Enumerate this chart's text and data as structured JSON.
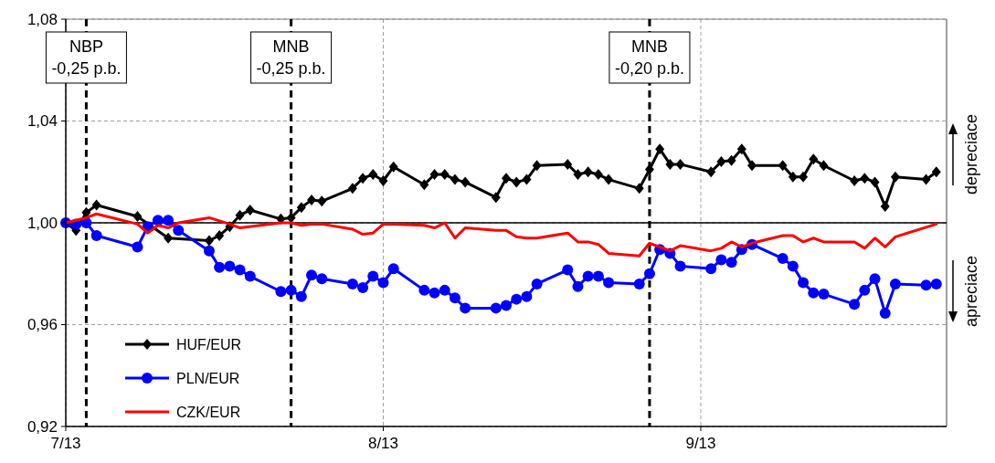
{
  "chart_data": {
    "type": "line",
    "xlim": [
      "2013-07-01",
      "2013-09-25"
    ],
    "xticks": [
      {
        "value": "2013-07-01",
        "label": "7/13"
      },
      {
        "value": "2013-08-01",
        "label": "8/13"
      },
      {
        "value": "2013-09-01",
        "label": "9/13"
      }
    ],
    "ylim": [
      0.92,
      1.08
    ],
    "yticks": [
      {
        "value": 0.92,
        "label": "0,92"
      },
      {
        "value": 0.96,
        "label": "0,96"
      },
      {
        "value": 1.0,
        "label": "1,00"
      },
      {
        "value": 1.04,
        "label": "1,04"
      },
      {
        "value": 1.08,
        "label": "1,08"
      }
    ],
    "grid": true,
    "legend": "bottom left",
    "line_style": "solid",
    "series": [
      {
        "name": "HUF/EUR",
        "color": "#000000",
        "marker": "diamond",
        "x": [
          "2013-07-01",
          "2013-07-02",
          "2013-07-03",
          "2013-07-04",
          "2013-07-08",
          "2013-07-11",
          "2013-07-15",
          "2013-07-16",
          "2013-07-17",
          "2013-07-18",
          "2013-07-19",
          "2013-07-22",
          "2013-07-23",
          "2013-07-24",
          "2013-07-25",
          "2013-07-26",
          "2013-07-29",
          "2013-07-30",
          "2013-07-31",
          "2013-08-01",
          "2013-08-02",
          "2013-08-05",
          "2013-08-06",
          "2013-08-07",
          "2013-08-08",
          "2013-08-09",
          "2013-08-12",
          "2013-08-13",
          "2013-08-14",
          "2013-08-15",
          "2013-08-16",
          "2013-08-19",
          "2013-08-20",
          "2013-08-21",
          "2013-08-22",
          "2013-08-23",
          "2013-08-26",
          "2013-08-27",
          "2013-08-28",
          "2013-08-29",
          "2013-08-30",
          "2013-09-02",
          "2013-09-03",
          "2013-09-04",
          "2013-09-05",
          "2013-09-06",
          "2013-09-09",
          "2013-09-10",
          "2013-09-11",
          "2013-09-12",
          "2013-09-13",
          "2013-09-16",
          "2013-09-17",
          "2013-09-18",
          "2013-09-19",
          "2013-09-20",
          "2013-09-23",
          "2013-09-24"
        ],
        "values": [
          1.0,
          0.997,
          1.004,
          1.007,
          1.0025,
          0.994,
          0.993,
          0.995,
          0.9985,
          1.003,
          1.005,
          1.0015,
          1.002,
          1.006,
          1.009,
          1.0085,
          1.0135,
          1.0175,
          1.019,
          1.0165,
          1.022,
          1.015,
          1.019,
          1.019,
          1.017,
          1.016,
          1.01,
          1.0175,
          1.016,
          1.017,
          1.0225,
          1.023,
          1.019,
          1.02,
          1.019,
          1.017,
          1.0135,
          1.021,
          1.029,
          1.023,
          1.023,
          1.02,
          1.024,
          1.0245,
          1.029,
          1.0225,
          1.0225,
          1.018,
          1.018,
          1.025,
          1.0225,
          1.0165,
          1.0175,
          1.016,
          1.0065,
          1.018,
          1.017,
          1.02
        ]
      },
      {
        "name": "PLN/EUR",
        "color": "#0000ff",
        "marker": "circle",
        "x": [
          "2013-07-01",
          "2013-07-02",
          "2013-07-03",
          "2013-07-04",
          "2013-07-08",
          "2013-07-09",
          "2013-07-10",
          "2013-07-11",
          "2013-07-12",
          "2013-07-15",
          "2013-07-16",
          "2013-07-17",
          "2013-07-18",
          "2013-07-19",
          "2013-07-22",
          "2013-07-23",
          "2013-07-24",
          "2013-07-25",
          "2013-07-26",
          "2013-07-29",
          "2013-07-30",
          "2013-07-31",
          "2013-08-01",
          "2013-08-02",
          "2013-08-05",
          "2013-08-06",
          "2013-08-07",
          "2013-08-08",
          "2013-08-09",
          "2013-08-12",
          "2013-08-13",
          "2013-08-14",
          "2013-08-15",
          "2013-08-16",
          "2013-08-19",
          "2013-08-20",
          "2013-08-21",
          "2013-08-22",
          "2013-08-23",
          "2013-08-26",
          "2013-08-27",
          "2013-08-28",
          "2013-08-29",
          "2013-08-30",
          "2013-09-02",
          "2013-09-03",
          "2013-09-04",
          "2013-09-05",
          "2013-09-06",
          "2013-09-09",
          "2013-09-10",
          "2013-09-11",
          "2013-09-12",
          "2013-09-13",
          "2013-09-16",
          "2013-09-17",
          "2013-09-18",
          "2013-09-19",
          "2013-09-20",
          "2013-09-23",
          "2013-09-24"
        ],
        "values": [
          1.0,
          0.9995,
          1.0,
          0.995,
          0.9905,
          0.9985,
          1.001,
          1.001,
          0.997,
          0.989,
          0.9825,
          0.983,
          0.9815,
          0.979,
          0.973,
          0.9735,
          0.971,
          0.9795,
          0.978,
          0.976,
          0.9745,
          0.979,
          0.9765,
          0.982,
          0.9735,
          0.9725,
          0.9735,
          0.9705,
          0.9665,
          0.9665,
          0.9675,
          0.97,
          0.971,
          0.976,
          0.9815,
          0.975,
          0.979,
          0.979,
          0.9765,
          0.976,
          0.98,
          0.9895,
          0.988,
          0.983,
          0.982,
          0.9855,
          0.9845,
          0.9895,
          0.9915,
          0.986,
          0.983,
          0.9765,
          0.9725,
          0.972,
          0.968,
          0.9735,
          0.978,
          0.9645,
          0.976,
          0.9755,
          0.976
        ]
      },
      {
        "name": "CZK/EUR",
        "color": "#ff0000",
        "marker": "none",
        "x": [
          "2013-07-01",
          "2013-07-03",
          "2013-07-04",
          "2013-07-08",
          "2013-07-09",
          "2013-07-10",
          "2013-07-11",
          "2013-07-12",
          "2013-07-15",
          "2013-07-17",
          "2013-07-18",
          "2013-07-22",
          "2013-07-23",
          "2013-07-24",
          "2013-07-25",
          "2013-07-26",
          "2013-07-29",
          "2013-07-30",
          "2013-07-31",
          "2013-08-01",
          "2013-08-02",
          "2013-08-05",
          "2013-08-06",
          "2013-08-07",
          "2013-08-08",
          "2013-08-09",
          "2013-08-12",
          "2013-08-13",
          "2013-08-14",
          "2013-08-15",
          "2013-08-16",
          "2013-08-19",
          "2013-08-20",
          "2013-08-21",
          "2013-08-22",
          "2013-08-23",
          "2013-08-26",
          "2013-08-27",
          "2013-08-28",
          "2013-08-29",
          "2013-08-30",
          "2013-09-02",
          "2013-09-03",
          "2013-09-04",
          "2013-09-05",
          "2013-09-06",
          "2013-09-09",
          "2013-09-10",
          "2013-09-11",
          "2013-09-12",
          "2013-09-13",
          "2013-09-16",
          "2013-09-17",
          "2013-09-18",
          "2013-09-19",
          "2013-09-20",
          "2013-09-24"
        ],
        "values": [
          1.0,
          1.002,
          1.0035,
          0.9995,
          0.996,
          0.999,
          0.998,
          1.0,
          1.002,
          0.9995,
          0.998,
          1.0,
          1.0,
          0.999,
          0.9995,
          0.9995,
          0.9975,
          0.9955,
          0.996,
          0.9995,
          0.9995,
          0.999,
          0.998,
          1.0,
          0.994,
          0.998,
          0.997,
          0.997,
          0.9945,
          0.994,
          0.994,
          0.996,
          0.9925,
          0.9925,
          0.9915,
          0.988,
          0.987,
          0.992,
          0.9905,
          0.989,
          0.991,
          0.989,
          0.99,
          0.9925,
          0.9905,
          0.992,
          0.995,
          0.995,
          0.9925,
          0.994,
          0.9925,
          0.9925,
          0.99,
          0.994,
          0.9905,
          0.9945,
          0.9995
        ]
      }
    ],
    "ref_lines": [
      {
        "axis": "y",
        "value": 1.0,
        "label": null,
        "color": "#000000",
        "line_style": "solid"
      },
      {
        "axis": "x",
        "value": "2013-07-03",
        "label": "NBP\n-0,25 p.b.",
        "color": "#000000",
        "line_style": "dashed"
      },
      {
        "axis": "x",
        "value": "2013-07-23",
        "label": "MNB\n-0,25 p.b.",
        "color": "#000000",
        "line_style": "dashed"
      },
      {
        "axis": "x",
        "value": "2013-08-27",
        "label": "MNB\n-0,20 p.b.",
        "color": "#000000",
        "line_style": "dashed"
      }
    ],
    "annotations": [
      "depreciace",
      "apreciace"
    ]
  }
}
